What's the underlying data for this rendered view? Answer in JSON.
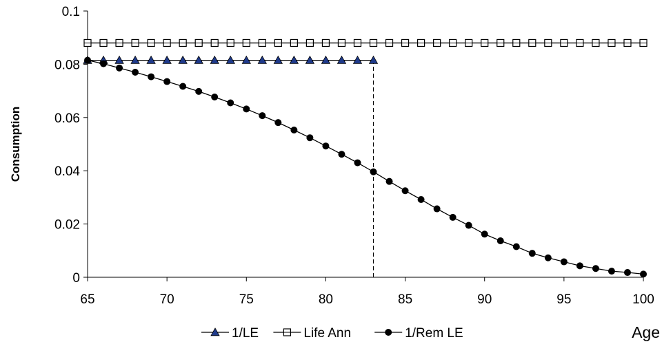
{
  "chart_data": {
    "type": "line",
    "title": "",
    "xlabel": "Age",
    "ylabel": "Consumption",
    "xlim": [
      65,
      100
    ],
    "ylim": [
      0,
      0.1
    ],
    "x_ticks": [
      65,
      70,
      75,
      80,
      85,
      90,
      95,
      100
    ],
    "x_tick_labels": [
      "65",
      "70",
      "75",
      "80",
      "85",
      "90",
      "95",
      "100"
    ],
    "y_ticks": [
      0,
      0.02,
      0.04,
      0.06,
      0.08,
      0.1
    ],
    "y_tick_labels": [
      "0",
      "0.02",
      "0.04",
      "0.06",
      "0.08",
      "0.1"
    ],
    "grid": false,
    "legend_position": "bottom",
    "series": [
      {
        "name": "1/LE",
        "marker": "triangle",
        "color": "#1f3a8a",
        "x": [
          65,
          66,
          67,
          68,
          69,
          70,
          71,
          72,
          73,
          74,
          75,
          76,
          77,
          78,
          79,
          80,
          81,
          82,
          83
        ],
        "y": [
          0.0815,
          0.0815,
          0.0815,
          0.0815,
          0.0815,
          0.0815,
          0.0815,
          0.0815,
          0.0815,
          0.0815,
          0.0815,
          0.0815,
          0.0815,
          0.0815,
          0.0815,
          0.0815,
          0.0815,
          0.0815,
          0.0815
        ]
      },
      {
        "name": "Life Ann",
        "marker": "square",
        "color": "#000000",
        "x": [
          65,
          66,
          67,
          68,
          69,
          70,
          71,
          72,
          73,
          74,
          75,
          76,
          77,
          78,
          79,
          80,
          81,
          82,
          83,
          84,
          85,
          86,
          87,
          88,
          89,
          90,
          91,
          92,
          93,
          94,
          95,
          96,
          97,
          98,
          99,
          100
        ],
        "y": [
          0.088,
          0.088,
          0.088,
          0.088,
          0.088,
          0.088,
          0.088,
          0.088,
          0.088,
          0.088,
          0.088,
          0.088,
          0.088,
          0.088,
          0.088,
          0.088,
          0.088,
          0.088,
          0.088,
          0.088,
          0.088,
          0.088,
          0.088,
          0.088,
          0.088,
          0.088,
          0.088,
          0.088,
          0.088,
          0.088,
          0.088,
          0.088,
          0.088,
          0.088,
          0.088,
          0.088
        ]
      },
      {
        "name": "1/Rem LE",
        "marker": "circle",
        "color": "#000000",
        "x": [
          65,
          66,
          67,
          68,
          69,
          70,
          71,
          72,
          73,
          74,
          75,
          76,
          77,
          78,
          79,
          80,
          81,
          82,
          83,
          84,
          85,
          86,
          87,
          88,
          89,
          90,
          91,
          92,
          93,
          94,
          95,
          96,
          97,
          98,
          99,
          100
        ],
        "y": [
          0.0815,
          0.0802,
          0.0786,
          0.077,
          0.0753,
          0.0735,
          0.0717,
          0.0698,
          0.0677,
          0.0655,
          0.0632,
          0.0607,
          0.0581,
          0.0553,
          0.0524,
          0.0493,
          0.0462,
          0.043,
          0.0396,
          0.036,
          0.0325,
          0.0292,
          0.0257,
          0.0225,
          0.0195,
          0.0162,
          0.0137,
          0.0115,
          0.009,
          0.0073,
          0.0058,
          0.0043,
          0.0033,
          0.0023,
          0.0018,
          0.0012
        ]
      }
    ],
    "annotations": [
      {
        "type": "vertical-dashed-line",
        "x": 83,
        "y_from": 0,
        "y_to": 0.0815
      }
    ]
  }
}
